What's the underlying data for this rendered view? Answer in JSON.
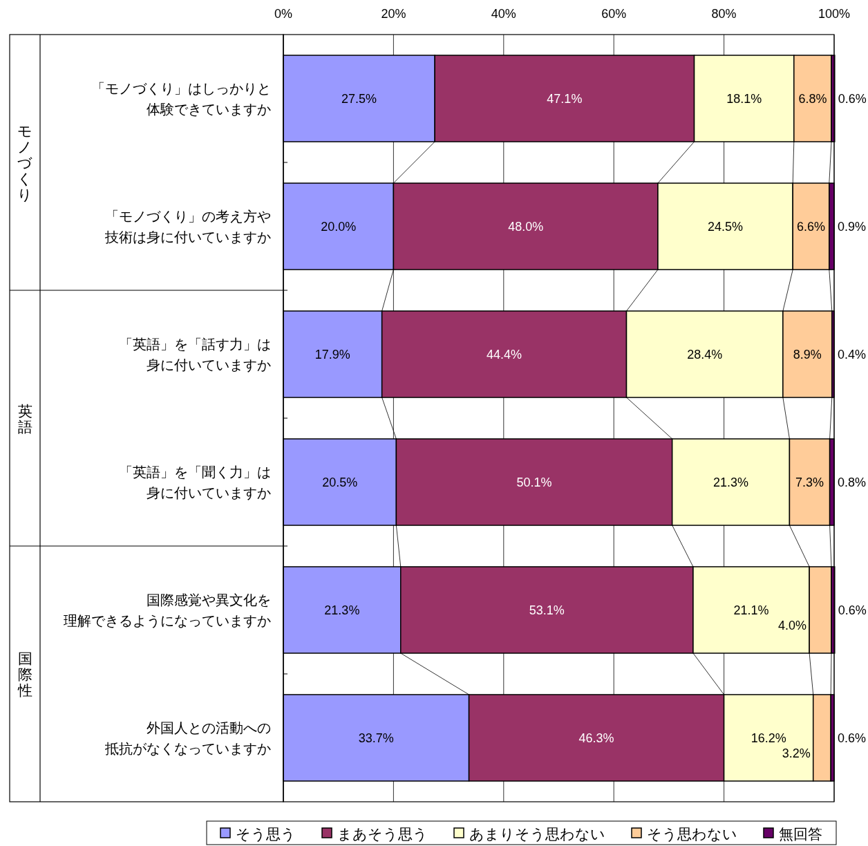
{
  "chart_data": {
    "type": "bar",
    "orientation": "horizontal",
    "stacked": true,
    "categories": [
      "「モノづくり」はしっかりと体験できていますか",
      "「モノづくり」の考え方や技術は身に付いていますか",
      "「英語」を「話す力」は身に付いていますか",
      "「英語」を「聞く力」は身に付いていますか",
      "国際感覚や異文化を理解できるようになっていますか",
      "外国人との活動への抵抗がなくなっていますか"
    ],
    "series": [
      {
        "name": "そう思う",
        "color": "#9999ff",
        "values": [
          27.5,
          20.0,
          17.9,
          20.5,
          21.3,
          33.7
        ],
        "value_labels": [
          "27.5%",
          "20.0%",
          "17.9%",
          "20.5%",
          "21.3%",
          "33.7%"
        ]
      },
      {
        "name": "まあそう思う",
        "color": "#993366",
        "values": [
          47.1,
          48.0,
          44.4,
          50.1,
          53.1,
          46.3
        ],
        "value_labels": [
          "47.1%",
          "48.0%",
          "44.4%",
          "50.1%",
          "53.1%",
          "46.3%"
        ]
      },
      {
        "name": "あまりそう思わない",
        "color": "#ffffcc",
        "values": [
          18.1,
          24.5,
          28.4,
          21.3,
          21.1,
          16.2
        ],
        "value_labels": [
          "18.1%",
          "24.5%",
          "28.4%",
          "21.3%",
          "21.1%",
          "16.2%"
        ]
      },
      {
        "name": "そう思わない",
        "color": "#ffcc99",
        "values": [
          6.8,
          6.6,
          8.9,
          7.3,
          4.0,
          3.2
        ],
        "value_labels": [
          "6.8%",
          "6.6%",
          "8.9%",
          "7.3%",
          "4.0%",
          "3.2%"
        ]
      },
      {
        "name": "無回答",
        "color": "#660066",
        "values": [
          0.6,
          0.9,
          0.4,
          0.8,
          0.6,
          0.6
        ],
        "value_labels": [
          "0.6%",
          "0.9%",
          "0.4%",
          "0.8%",
          "0.6%",
          "0.6%"
        ]
      }
    ],
    "xlim": [
      0,
      100
    ],
    "xticks": [
      {
        "value": 0,
        "label": "0%"
      },
      {
        "value": 20,
        "label": "20%"
      },
      {
        "value": 40,
        "label": "40%"
      },
      {
        "value": 60,
        "label": "60%"
      },
      {
        "value": 80,
        "label": "80%"
      },
      {
        "value": 100,
        "label": "100%"
      }
    ],
    "grid": "x",
    "legend": "bottom",
    "annotations": [
      "モノづくり",
      "英語",
      "国際性"
    ]
  }
}
